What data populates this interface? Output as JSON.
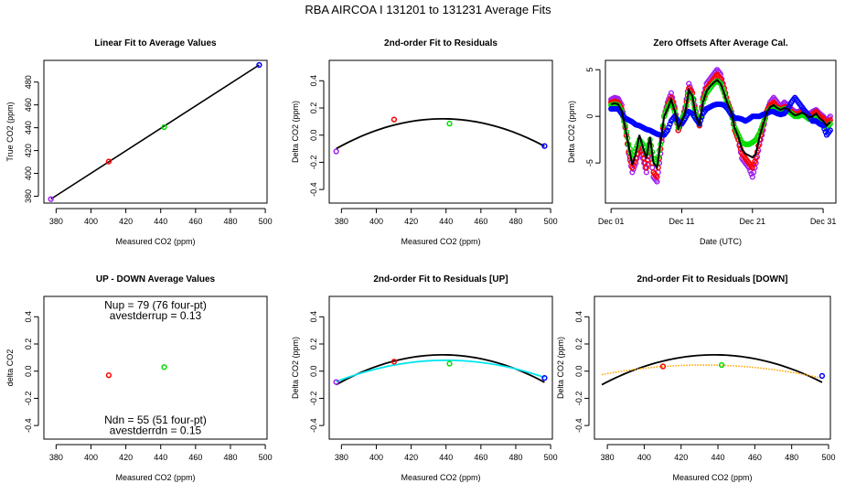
{
  "figure": {
    "title": "RBA   AIRCOA I   131201 to 131231   Average Fits",
    "colors": {
      "purple": "#a020f0",
      "red": "#ff0000",
      "green": "#00dd00",
      "blue": "#0000ff",
      "black": "#000000",
      "cyan": "#00e5ee",
      "orange": "#ffa500"
    }
  },
  "chart_data": [
    {
      "id": "p1",
      "type": "scatter",
      "title": "Linear Fit to Average Values",
      "xlabel": "Measured CO2 (ppm)",
      "ylabel": "True CO2 (ppm)",
      "xlim": [
        373,
        501
      ],
      "ylim": [
        374,
        499
      ],
      "xticks": [
        380,
        400,
        420,
        440,
        460,
        480,
        500
      ],
      "yticks": [
        380,
        400,
        420,
        440,
        460,
        480
      ],
      "points": [
        {
          "x": 377.0,
          "y": 377.5,
          "color": "purple"
        },
        {
          "x": 410.2,
          "y": 410.4,
          "color": "red"
        },
        {
          "x": 442.0,
          "y": 440.5,
          "color": "green"
        },
        {
          "x": 496.5,
          "y": 495.0,
          "color": "blue"
        }
      ],
      "fit_line": {
        "x": [
          377,
          496.5
        ],
        "y": [
          377.5,
          495.0
        ],
        "color": "black"
      }
    },
    {
      "id": "p2",
      "type": "scatter",
      "title": "2nd-order Fit to Residuals",
      "xlabel": "Measured CO2 (ppm)",
      "ylabel": "Delta CO2 (ppm)",
      "xlim": [
        373,
        501
      ],
      "ylim": [
        -0.5,
        0.55
      ],
      "xticks": [
        380,
        400,
        420,
        440,
        460,
        480,
        500
      ],
      "yticks": [
        -0.4,
        -0.2,
        0.0,
        0.2,
        0.4
      ],
      "ytick_labels": [
        "-0.4",
        "-0.2",
        "0.0",
        "0.2",
        "0.4"
      ],
      "points": [
        {
          "x": 377.0,
          "y": -0.12,
          "color": "purple"
        },
        {
          "x": 410.2,
          "y": 0.115,
          "color": "red"
        },
        {
          "x": 442.0,
          "y": 0.085,
          "color": "green"
        },
        {
          "x": 496.5,
          "y": -0.08,
          "color": "blue"
        }
      ],
      "curves": [
        {
          "name": "fit",
          "color": "black",
          "vertex": 438,
          "peak": 0.12,
          "curv": 5.91e-05,
          "xrange": [
            377,
            496.5
          ]
        }
      ]
    },
    {
      "id": "p3",
      "type": "line",
      "title": "Zero Offsets After Average Cal.",
      "xlabel": "Date (UTC)",
      "ylabel": "Delta CO2 (ppm)",
      "xlim": [
        -0.8,
        31.8
      ],
      "ylim": [
        -9.3,
        6
      ],
      "xticks": [
        0,
        10,
        20,
        30
      ],
      "xtick_labels": [
        "Dec 01",
        "Dec 11",
        "Dec 21",
        "Dec 31"
      ],
      "yticks": [
        -5,
        0,
        5
      ],
      "series": [
        {
          "name": "purple",
          "color": "purple",
          "x": [
            0,
            0.5,
            1,
            1.5,
            2,
            2.5,
            3,
            3.5,
            4,
            4.5,
            5,
            5.5,
            6,
            6.5,
            7,
            7.5,
            8,
            8.5,
            9,
            9.5,
            10,
            10.5,
            11,
            11.5,
            12,
            12.5,
            13,
            13.5,
            14,
            14.5,
            15,
            15.5,
            16,
            16.5,
            17,
            17.5,
            18,
            18.5,
            19,
            19.5,
            20,
            20.5,
            21,
            21.5,
            22,
            22.5,
            23,
            23.5,
            24,
            24.5,
            25,
            25.5,
            26,
            26.5,
            27,
            27.5,
            28,
            28.5,
            29,
            29.5,
            30,
            30.5,
            31
          ],
          "y": [
            1.8,
            2.0,
            1.9,
            1.2,
            -1.0,
            -4.0,
            -6.0,
            -5.0,
            -3.5,
            -4.5,
            -6.0,
            -3.5,
            -6.5,
            -7.0,
            -4.0,
            0.0,
            1.5,
            2.5,
            1.0,
            -1.5,
            -0.5,
            1.0,
            3.5,
            2.5,
            0.5,
            -1.0,
            2.0,
            3.5,
            4.0,
            4.5,
            5.0,
            4.5,
            3.0,
            1.5,
            0.5,
            -1.5,
            -2.5,
            -4.5,
            -5.0,
            -5.5,
            -6.5,
            -5.0,
            -3.0,
            -1.5,
            0.5,
            1.5,
            2.0,
            1.5,
            1.0,
            1.5,
            1.2,
            0.8,
            0.5,
            0.5,
            0.7,
            0.5,
            0.2,
            0.5,
            0.7,
            0.3,
            0.0,
            -0.5,
            0.0
          ]
        },
        {
          "name": "red",
          "color": "red",
          "x": [
            0,
            0.5,
            1,
            1.5,
            2,
            2.5,
            3,
            3.5,
            4,
            4.5,
            5,
            5.5,
            6,
            6.5,
            7,
            7.5,
            8,
            8.5,
            9,
            9.5,
            10,
            10.5,
            11,
            11.5,
            12,
            12.5,
            13,
            13.5,
            14,
            14.5,
            15,
            15.5,
            16,
            16.5,
            17,
            17.5,
            18,
            18.5,
            19,
            19.5,
            20,
            20.5,
            21,
            21.5,
            22,
            22.5,
            23,
            23.5,
            24,
            24.5,
            25,
            25.5,
            26,
            26.5,
            27,
            27.5,
            28,
            28.5,
            29,
            29.5,
            30,
            30.5,
            31
          ],
          "y": [
            1.5,
            1.6,
            1.5,
            0.8,
            -1.2,
            -3.8,
            -5.5,
            -4.5,
            -3.0,
            -4.0,
            -5.5,
            -3.0,
            -6.0,
            -6.5,
            -3.5,
            0.0,
            1.2,
            2.0,
            0.8,
            -1.5,
            -0.5,
            0.8,
            3.0,
            2.5,
            0.2,
            -1.0,
            1.8,
            3.0,
            3.5,
            4.0,
            4.5,
            4.0,
            3.0,
            1.5,
            0.5,
            -1.5,
            -2.5,
            -4.0,
            -4.5,
            -5.0,
            -5.5,
            -4.5,
            -2.5,
            -1.0,
            0.5,
            1.2,
            1.5,
            1.0,
            0.8,
            1.0,
            1.0,
            0.5,
            0.2,
            0.3,
            0.5,
            0.3,
            0.0,
            0.2,
            0.5,
            0.0,
            -0.2,
            -0.8,
            -0.4
          ]
        },
        {
          "name": "green",
          "color": "green",
          "x": [
            0,
            0.5,
            1,
            1.5,
            2,
            2.5,
            3,
            3.5,
            4,
            4.5,
            5,
            5.5,
            6,
            6.5,
            7,
            7.5,
            8,
            8.5,
            9,
            9.5,
            10,
            10.5,
            11,
            11.5,
            12,
            12.5,
            13,
            13.5,
            14,
            14.5,
            15,
            15.5,
            16,
            16.5,
            17,
            17.5,
            18,
            18.5,
            19,
            19.5,
            20,
            20.5,
            21,
            21.5,
            22,
            22.5,
            23,
            23.5,
            24,
            24.5,
            25,
            25.5,
            26,
            26.5,
            27,
            27.5,
            28,
            28.5,
            29,
            29.5,
            30,
            30.5,
            31
          ],
          "y": [
            1.2,
            1.3,
            1.2,
            0.5,
            -1.0,
            -3.0,
            -4.5,
            -3.5,
            -2.5,
            -3.0,
            -4.0,
            -2.5,
            -4.5,
            -5.0,
            -3.0,
            0.0,
            1.0,
            1.5,
            0.5,
            -1.2,
            -0.3,
            0.5,
            2.5,
            2.0,
            0.2,
            -0.8,
            1.5,
            2.5,
            3.0,
            3.5,
            3.8,
            3.5,
            2.5,
            1.2,
            0.3,
            -1.2,
            -2.0,
            -2.8,
            -3.0,
            -3.0,
            -2.8,
            -2.5,
            -1.8,
            -0.8,
            0.3,
            0.8,
            1.0,
            0.8,
            0.6,
            0.8,
            0.6,
            0.3,
            0.0,
            0.0,
            0.2,
            0.0,
            -0.3,
            -0.2,
            0.0,
            -0.5,
            -0.8,
            -1.3,
            -0.8
          ]
        },
        {
          "name": "blue",
          "color": "blue",
          "x": [
            0,
            0.5,
            1,
            1.5,
            2,
            2.5,
            3,
            3.5,
            4,
            4.5,
            5,
            5.5,
            6,
            6.5,
            7,
            7.5,
            8,
            8.5,
            9,
            9.5,
            10,
            10.5,
            11,
            11.5,
            12,
            12.5,
            13,
            13.5,
            14,
            14.5,
            15,
            15.5,
            16,
            16.5,
            17,
            17.5,
            18,
            18.5,
            19,
            19.5,
            20,
            20.5,
            21,
            21.5,
            22,
            22.5,
            23,
            23.5,
            24,
            24.5,
            25,
            25.5,
            26,
            26.5,
            27,
            27.5,
            28,
            28.5,
            29,
            29.5,
            30,
            30.5,
            31
          ],
          "y": [
            0.8,
            0.8,
            0.8,
            0.3,
            -0.2,
            -0.4,
            -0.6,
            -0.9,
            -1.0,
            -1.2,
            -1.4,
            -1.5,
            -1.7,
            -1.9,
            -2.0,
            -2.0,
            -1.5,
            -0.5,
            0.0,
            -0.5,
            -0.8,
            -0.2,
            0.5,
            0.3,
            -0.3,
            -0.8,
            0.3,
            0.8,
            1.0,
            1.2,
            1.3,
            1.3,
            1.2,
            0.8,
            0.2,
            -0.2,
            -0.2,
            -0.3,
            -0.5,
            -0.3,
            0.0,
            0.0,
            0.0,
            0.2,
            0.3,
            0.5,
            0.5,
            0.3,
            0.2,
            0.3,
            0.8,
            1.5,
            2.0,
            1.5,
            1.0,
            0.5,
            0.0,
            -0.5,
            -0.5,
            -0.8,
            -1.0,
            -2.0,
            -1.5
          ]
        },
        {
          "name": "mean",
          "color": "black",
          "x": [
            0,
            0.5,
            1,
            1.5,
            2,
            2.5,
            3,
            3.5,
            4,
            4.5,
            5,
            5.5,
            6,
            6.5,
            7,
            7.5,
            8,
            8.5,
            9,
            9.5,
            10,
            10.5,
            11,
            11.5,
            12,
            12.5,
            13,
            13.5,
            14,
            14.5,
            15,
            15.5,
            16,
            16.5,
            17,
            17.5,
            18,
            18.5,
            19,
            19.5,
            20,
            20.5,
            21,
            21.5,
            22,
            22.5,
            23,
            23.5,
            24,
            24.5,
            25,
            25.5,
            26,
            26.5,
            27,
            27.5,
            28,
            28.5,
            29,
            29.5,
            30,
            30.5,
            31
          ],
          "y": [
            1.3,
            1.4,
            1.3,
            0.6,
            -1.2,
            -3.2,
            -5.2,
            -4.0,
            -2.0,
            -3.3,
            -4.5,
            -2.2,
            -5.0,
            -5.5,
            -2.8,
            0.0,
            0.8,
            1.8,
            0.6,
            -1.3,
            -0.5,
            0.5,
            2.8,
            2.2,
            0.0,
            -0.9,
            1.5,
            2.7,
            3.2,
            3.6,
            3.9,
            3.5,
            2.5,
            1.3,
            0.4,
            -1.3,
            -2.2,
            -3.5,
            -4.0,
            -4.2,
            -4.4,
            -4.0,
            -2.2,
            -0.9,
            0.4,
            1.0,
            1.2,
            0.9,
            0.7,
            0.9,
            0.8,
            0.4,
            0.1,
            0.2,
            0.4,
            0.2,
            -0.1,
            0.0,
            0.3,
            -0.2,
            -0.5,
            -1.0,
            -0.6
          ]
        }
      ]
    },
    {
      "id": "p4",
      "type": "scatter",
      "title": "UP - DOWN Average Values",
      "xlabel": "Measured CO2 (ppm)",
      "ylabel": "delta CO2",
      "xlim": [
        373,
        501
      ],
      "ylim": [
        -0.5,
        0.55
      ],
      "xticks": [
        380,
        400,
        420,
        440,
        460,
        480,
        500
      ],
      "yticks": [
        -0.4,
        -0.2,
        0.0,
        0.2,
        0.4
      ],
      "ytick_labels": [
        "-0.4",
        "-0.2",
        "0.0",
        "0.2",
        "0.4"
      ],
      "points": [
        {
          "x": 410.2,
          "y": -0.03,
          "color": "red"
        },
        {
          "x": 442.0,
          "y": 0.03,
          "color": "green"
        }
      ],
      "annotations": [
        "Nup = 79 (76 four-pt)",
        "avestderrup =  0.13",
        "Ndn = 55 (51 four-pt)",
        "avestderrdn =  0.15"
      ]
    },
    {
      "id": "p5",
      "type": "scatter",
      "title": "2nd-order Fit to Residuals [UP]",
      "xlabel": "Measured CO2 (ppm)",
      "ylabel": "Delta CO2 (ppm)",
      "xlim": [
        373,
        501
      ],
      "ylim": [
        -0.5,
        0.55
      ],
      "xticks": [
        380,
        400,
        420,
        440,
        460,
        480,
        500
      ],
      "yticks": [
        -0.4,
        -0.2,
        0.0,
        0.2,
        0.4
      ],
      "ytick_labels": [
        "-0.4",
        "-0.2",
        "0.0",
        "0.2",
        "0.4"
      ],
      "points": [
        {
          "x": 377.0,
          "y": -0.08,
          "color": "purple"
        },
        {
          "x": 410.2,
          "y": 0.07,
          "color": "red"
        },
        {
          "x": 442.0,
          "y": 0.055,
          "color": "green"
        },
        {
          "x": 496.5,
          "y": -0.05,
          "color": "blue"
        }
      ],
      "curves": [
        {
          "name": "fit",
          "color": "black",
          "vertex": 438,
          "peak": 0.12,
          "curv": 5.91e-05,
          "xrange": [
            377,
            496.5
          ]
        },
        {
          "name": "up-fit",
          "color": "cyan",
          "vertex": 440,
          "peak": 0.08,
          "curv": 3.97e-05,
          "xrange": [
            377,
            496.5
          ]
        }
      ]
    },
    {
      "id": "p6",
      "type": "scatter",
      "title": "2nd-order Fit to Residuals [DOWN]",
      "xlabel": "Measured CO2 (ppm)",
      "ylabel": "Delta CO2 (ppm)",
      "xlim": [
        373,
        501
      ],
      "ylim": [
        -0.5,
        0.55
      ],
      "xticks": [
        380,
        400,
        420,
        440,
        460,
        480,
        500
      ],
      "yticks": [
        -0.4,
        -0.2,
        0.0,
        0.2,
        0.4
      ],
      "ytick_labels": [
        "-0.4",
        "-0.2",
        "0.0",
        "0.2",
        "0.4"
      ],
      "points": [
        {
          "x": 410.2,
          "y": 0.035,
          "color": "red"
        },
        {
          "x": 442.0,
          "y": 0.045,
          "color": "green"
        },
        {
          "x": 496.5,
          "y": -0.035,
          "color": "blue"
        }
      ],
      "curves": [
        {
          "name": "fit",
          "color": "black",
          "vertex": 438,
          "peak": 0.12,
          "curv": 5.91e-05,
          "xrange": [
            377,
            496.5
          ]
        },
        {
          "name": "down-fit",
          "color": "orange",
          "dashed": true,
          "vertex": 432,
          "peak": 0.045,
          "curv": 2.33e-05,
          "xrange": [
            377,
            496.5
          ]
        }
      ]
    }
  ]
}
